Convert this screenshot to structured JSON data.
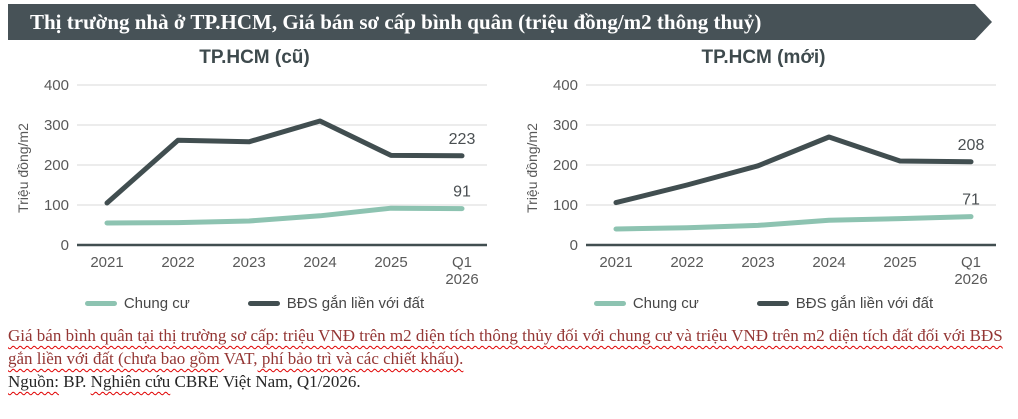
{
  "banner": {
    "title": "Thị trường nhà ở TP.HCM, Giá bán sơ cấp bình quân (triệu đồng/m2 thông thuỷ)"
  },
  "chart_data": [
    {
      "type": "line",
      "title": "TP.HCM (cũ)",
      "ylabel": "Triệu đồng/m2",
      "ylim": [
        0,
        400
      ],
      "yticks": [
        0,
        100,
        200,
        300,
        400
      ],
      "grid": true,
      "legend_position": "bottom",
      "categories": [
        "2021",
        "2022",
        "2023",
        "2024",
        "2025",
        "Q1\n2026"
      ],
      "series": [
        {
          "name": "Chung cư",
          "color": "#8dc3b1",
          "values": [
            55,
            56,
            60,
            73,
            92,
            91
          ],
          "end_label": "91"
        },
        {
          "name": "BĐS gắn liền với đất",
          "color": "#414e50",
          "values": [
            105,
            262,
            258,
            310,
            224,
            223
          ],
          "end_label": "223"
        }
      ]
    },
    {
      "type": "line",
      "title": "TP.HCM (mới)",
      "ylabel": "Triệu đồng/m2",
      "ylim": [
        0,
        400
      ],
      "yticks": [
        0,
        100,
        200,
        300,
        400
      ],
      "grid": true,
      "legend_position": "bottom",
      "categories": [
        "2021",
        "2022",
        "2023",
        "2024",
        "2025",
        "Q1\n2026"
      ],
      "series": [
        {
          "name": "Chung cư",
          "color": "#8dc3b1",
          "values": [
            40,
            43,
            49,
            62,
            66,
            71
          ],
          "end_label": "71"
        },
        {
          "name": "BĐS gắn liền với đất",
          "color": "#414e50",
          "values": [
            106,
            150,
            198,
            270,
            210,
            208
          ],
          "end_label": "208"
        }
      ]
    }
  ],
  "footnote": {
    "definition_segments": [
      {
        "text": "Giá bán bình quân tại thị trường sơ cấp: triệu VNĐ trên m2 diện tích thông thủy đối với chung cư và triệu VNĐ trên m2 diện tích đất đối với BĐS gắn liền với đất (chưa bao gồm ",
        "wavy": true
      },
      {
        "text": "VAT,",
        "wavy": false
      },
      {
        "text": " phí bảo trì và các chiết khấu).",
        "wavy": true
      }
    ],
    "source_segments": [
      {
        "text": "Nguồn:",
        "wavy": true
      },
      {
        "text": " BP. ",
        "wavy": false
      },
      {
        "text": "Nghiên cứu",
        "wavy": true
      },
      {
        "text": " CBRE Việt Nam, Q1/2026.",
        "wavy": false
      }
    ]
  },
  "colors": {
    "banner_bg": "#475257",
    "chart_title": "#3e4a4d",
    "axis_text": "#595959",
    "gridline": "#d9d9d9",
    "axis_line": "#414e50",
    "series_chung_cu": "#8dc3b1",
    "series_bds": "#414e50",
    "data_label": "#4a4f52",
    "footnote_text": "#943634",
    "source_text": "#262626",
    "squiggle": "#e00000"
  }
}
